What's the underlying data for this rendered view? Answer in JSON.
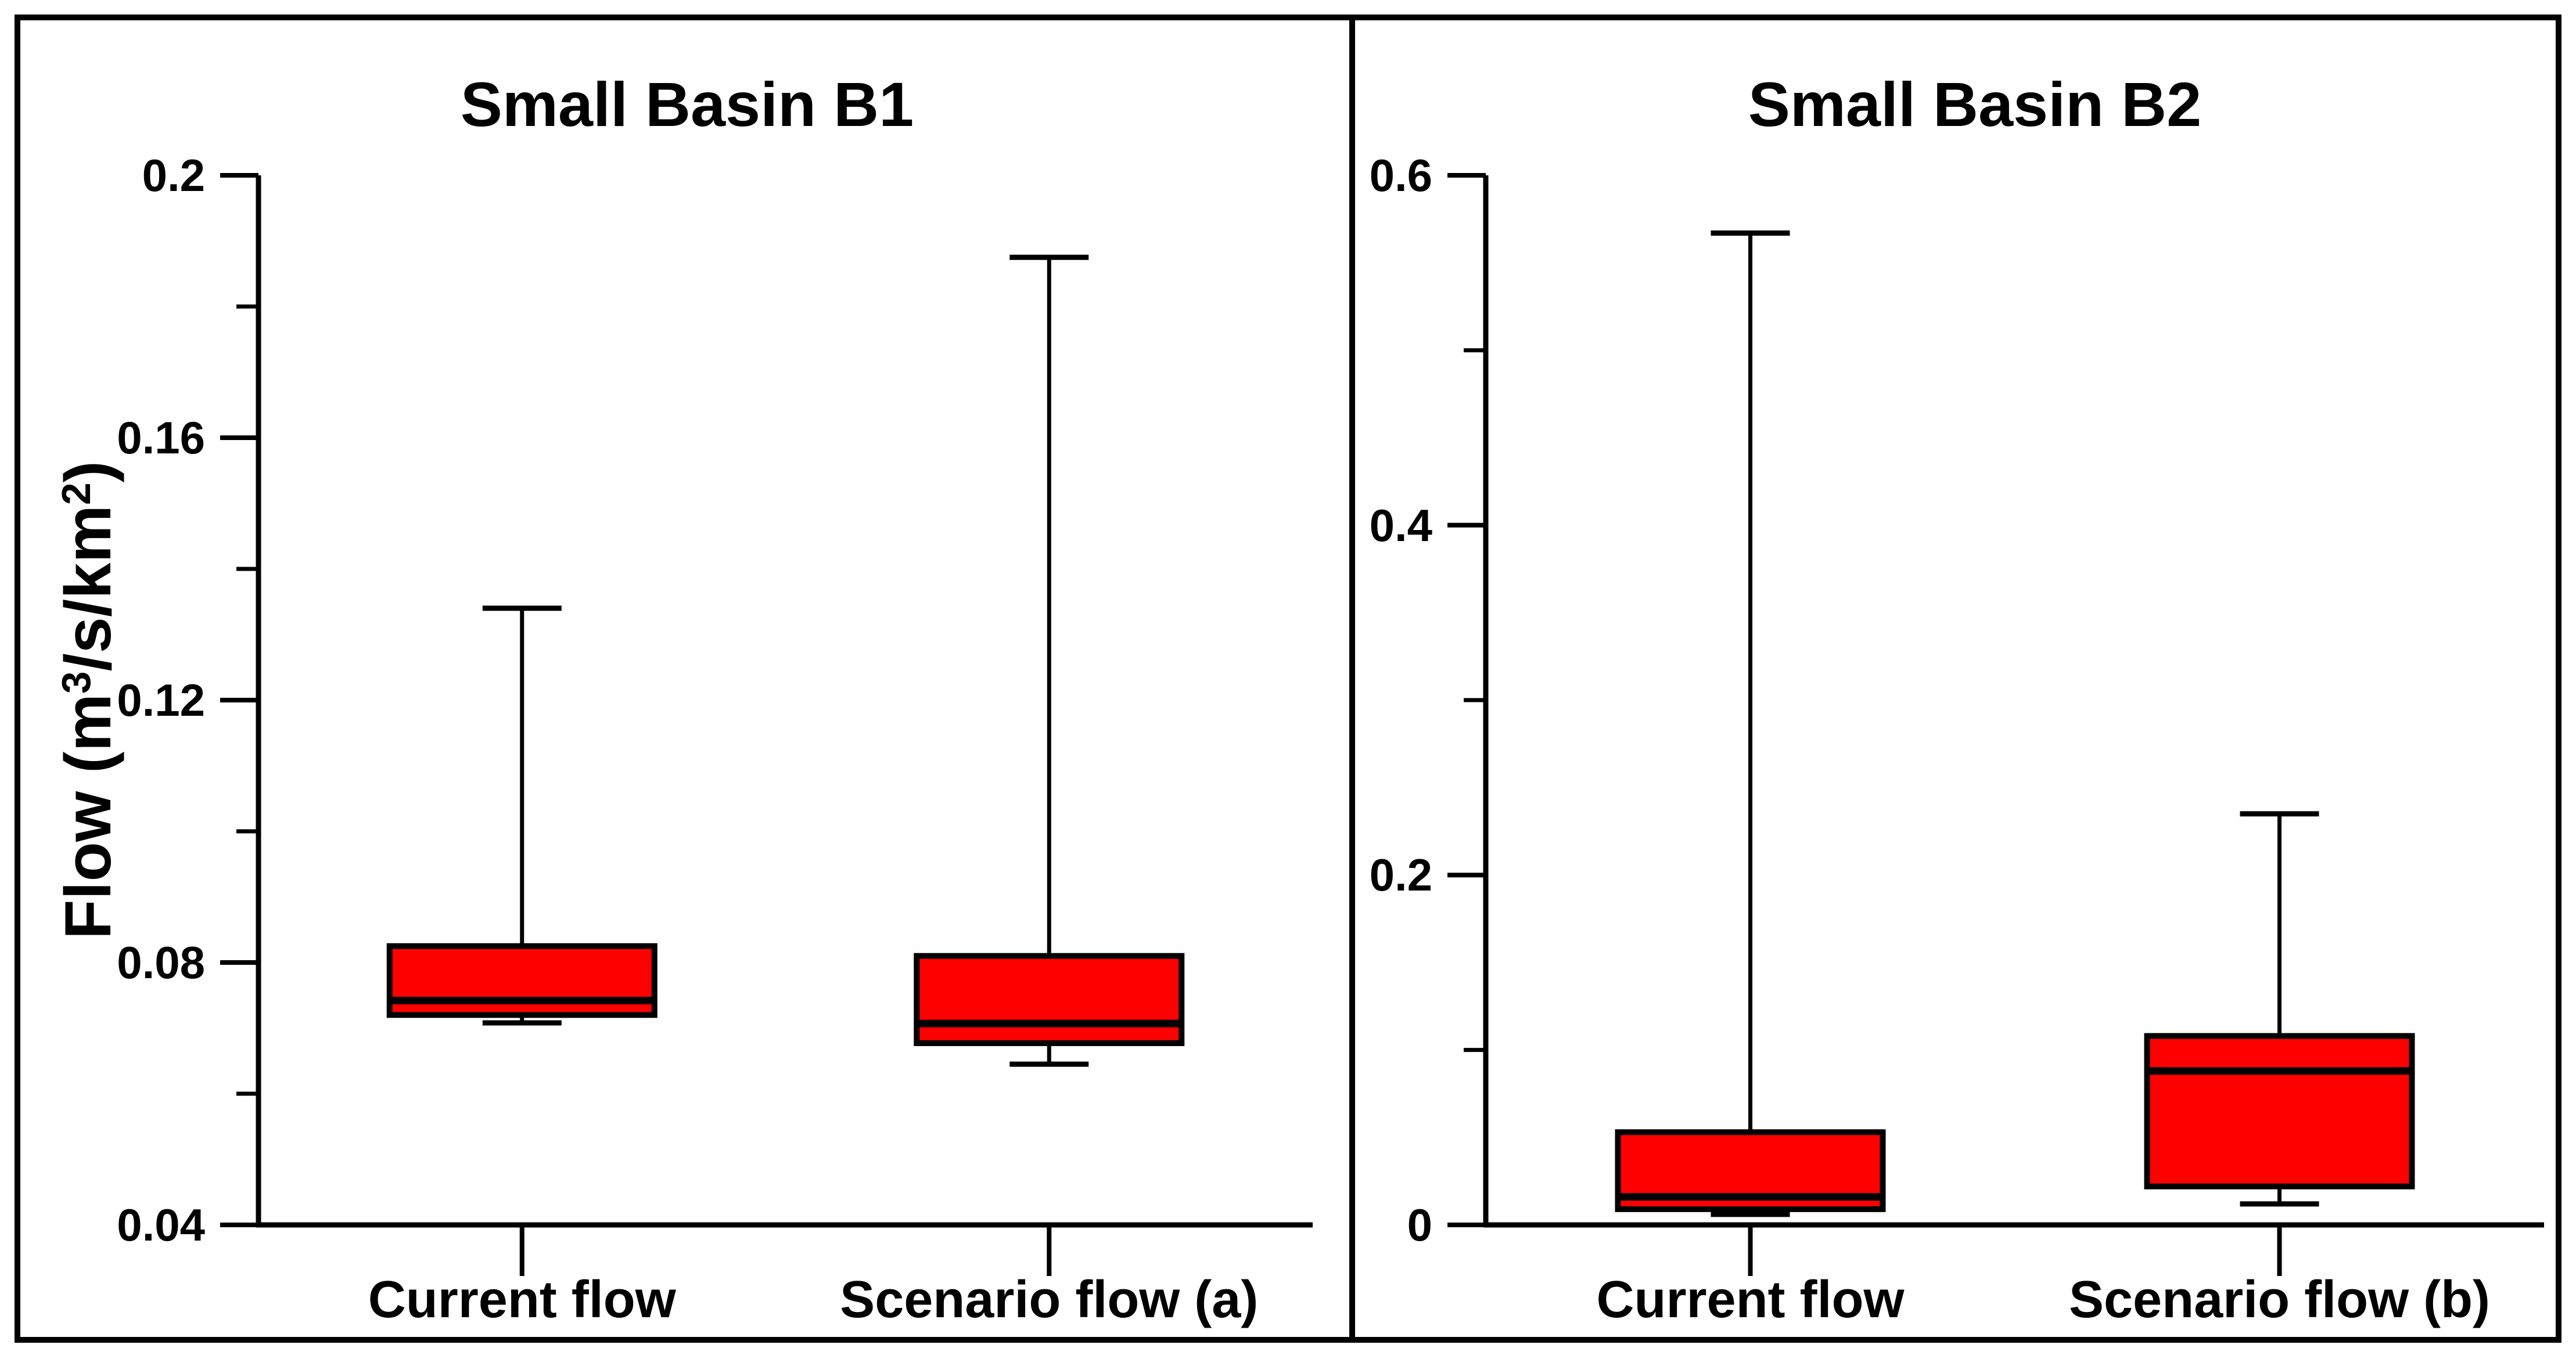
{
  "figure": {
    "background": "#FFFFFF",
    "frame_color": "#000000"
  },
  "chart_data": [
    {
      "type": "box",
      "title": "Small Basin B1",
      "ylabel": "Flow (m3/s/km2)",
      "ylabel_parts": {
        "prefix": "Flow (m",
        "sup1": "3",
        "mid": "/s/km",
        "sup2": "2",
        "suffix": ")"
      },
      "categories": [
        "Current flow",
        "Scenario flow (a)"
      ],
      "ylim": [
        0.04,
        0.2
      ],
      "yticks": [
        0.04,
        0.08,
        0.12,
        0.16,
        0.2
      ],
      "ytick_labels": [
        "0.04",
        "0.08",
        "0.12",
        "0.16",
        "0.2"
      ],
      "minor_ticks": [
        0.06,
        0.1,
        0.14,
        0.18
      ],
      "grid": false,
      "legend": false,
      "box_fill": "#FF0000",
      "line_color": "#000000",
      "boxes": [
        {
          "category": "Current flow",
          "whisker_low": 0.0708,
          "q1": 0.072,
          "median": 0.0742,
          "q3": 0.0825,
          "whisker_high": 0.134
        },
        {
          "category": "Scenario flow (a)",
          "whisker_low": 0.0645,
          "q1": 0.0677,
          "median": 0.0707,
          "q3": 0.081,
          "whisker_high": 0.1875
        }
      ]
    },
    {
      "type": "box",
      "title": "Small Basin B2",
      "categories": [
        "Current flow",
        "Scenario flow (b)"
      ],
      "ylim": [
        0,
        0.6
      ],
      "yticks": [
        0,
        0.2,
        0.4,
        0.6
      ],
      "ytick_labels": [
        "0",
        "0.2",
        "0.4",
        "0.6"
      ],
      "minor_ticks": [
        0.1,
        0.3,
        0.5
      ],
      "grid": false,
      "legend": false,
      "box_fill": "#FF0000",
      "line_color": "#000000",
      "boxes": [
        {
          "category": "Current flow",
          "whisker_low": 0.006,
          "q1": 0.009,
          "median": 0.016,
          "q3": 0.053,
          "whisker_high": 0.567
        },
        {
          "category": "Scenario flow (b)",
          "whisker_low": 0.012,
          "q1": 0.022,
          "median": 0.088,
          "q3": 0.108,
          "whisker_high": 0.235
        }
      ]
    }
  ]
}
